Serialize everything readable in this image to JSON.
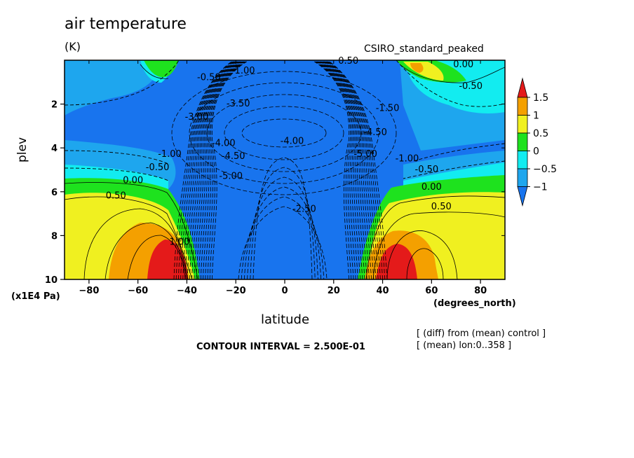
{
  "title": "air temperature",
  "units": "(K)",
  "subtitle": "CSIRO_standard_peaked",
  "notes": [
    "[ (diff) from (mean) control ]",
    "[ (mean) lon:0..358 ]"
  ],
  "contour_interval": "CONTOUR INTERVAL = 2.500E-01",
  "colors": {
    "lt_neg1": "#1874ee",
    "neg1_neg05": "#1ea6ee",
    "neg05_0": "#12ecf0",
    "0_05": "#1ee21e",
    "05_1": "#f0f020",
    "1_15": "#f4a000",
    "gt_15": "#e41a1a"
  },
  "chart_data": {
    "type": "heatmap",
    "title": "air temperature",
    "units": "(K)",
    "xlabel": "latitude",
    "xunit": "(degrees_north)",
    "ylabel": "plev",
    "yunit": "(x1E4 Pa)",
    "xlim": [
      -90,
      90
    ],
    "ylim": [
      10,
      0
    ],
    "xticks": [
      -80,
      -60,
      -40,
      -20,
      0,
      20,
      40,
      60,
      80
    ],
    "yticks": [
      2,
      4,
      6,
      8,
      10
    ],
    "colorbar": {
      "labels": [
        "1.5",
        "1",
        "0.5",
        "0",
        "-0.5",
        "-1"
      ],
      "levels": [
        -1,
        -0.5,
        0,
        0.5,
        1,
        1.5
      ],
      "extend": "both"
    },
    "contour_labels": [
      {
        "text": "0.50",
        "x": 26,
        "y": 0.05
      },
      {
        "text": "-0.50",
        "x": -31,
        "y": 0.8
      },
      {
        "text": "-1.00",
        "x": -17,
        "y": 0.5
      },
      {
        "text": "-3.50",
        "x": -19,
        "y": 2.0
      },
      {
        "text": "-3.00",
        "x": -36,
        "y": 2.6
      },
      {
        "text": "-4.00",
        "x": 3,
        "y": 3.7
      },
      {
        "text": "-4.00",
        "x": -25,
        "y": 3.8
      },
      {
        "text": "-4.50",
        "x": -21,
        "y": 4.4
      },
      {
        "text": "-5.00",
        "x": -22,
        "y": 5.3
      },
      {
        "text": "-2.50",
        "x": 8,
        "y": 6.8
      },
      {
        "text": "-1.00",
        "x": -47,
        "y": 4.3
      },
      {
        "text": "-0.50",
        "x": -52,
        "y": 4.9
      },
      {
        "text": "0.00",
        "x": -62,
        "y": 5.5
      },
      {
        "text": "0.50",
        "x": -69,
        "y": 6.2
      },
      {
        "text": "1.00",
        "x": -43,
        "y": 8.3
      },
      {
        "text": "-5.00",
        "x": 33,
        "y": 4.3
      },
      {
        "text": "-4.50",
        "x": 37,
        "y": 3.3
      },
      {
        "text": "-1.50",
        "x": 42,
        "y": 2.2
      },
      {
        "text": "-1.00",
        "x": 50,
        "y": 4.5
      },
      {
        "text": "-0.50",
        "x": 58,
        "y": 5.0
      },
      {
        "text": "0.00",
        "x": 60,
        "y": 5.8
      },
      {
        "text": "0.50",
        "x": 64,
        "y": 6.7
      },
      {
        "text": "0.00",
        "x": 73,
        "y": 0.2
      },
      {
        "text": "-0.50",
        "x": 76,
        "y": 1.2
      }
    ]
  }
}
